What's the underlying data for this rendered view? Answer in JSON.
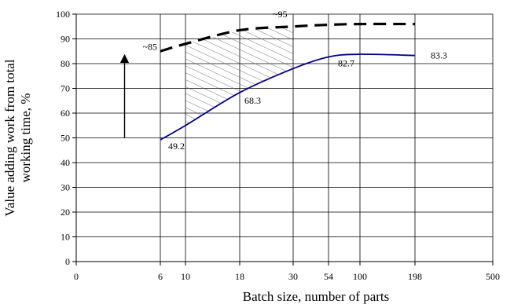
{
  "chart_data": {
    "type": "line",
    "xlabel": "Batch size, number of parts",
    "ylabel_lines": [
      "Value adding work from total",
      "working time, %"
    ],
    "x_scale": "categorical",
    "x_ticks": [
      "0",
      "6",
      "10",
      "18",
      "30",
      "54",
      "100",
      "198",
      "500"
    ],
    "ylim": [
      0,
      100
    ],
    "y_ticks": [
      "0",
      "10",
      "20",
      "30",
      "40",
      "50",
      "60",
      "70",
      "80",
      "90",
      "100"
    ],
    "grid": "vertical lines at x ticks, horizontal lines at y ticks",
    "series": [
      {
        "style": "solid",
        "color": "#00008B",
        "x": [
          "6",
          "10",
          "18",
          "30",
          "54",
          "100",
          "198"
        ],
        "values": [
          49.2,
          55,
          68.3,
          78,
          82.7,
          83.8,
          83.3
        ]
      },
      {
        "style": "dashed",
        "color": "#000000",
        "x": [
          "6",
          "10",
          "18",
          "30",
          "54",
          "100",
          "198"
        ],
        "values": [
          85,
          88,
          93.5,
          95,
          95.7,
          96,
          96
        ]
      }
    ],
    "data_labels": [
      {
        "text": "49.2",
        "series": 0,
        "x": "6"
      },
      {
        "text": "68.3",
        "series": 0,
        "x": "18"
      },
      {
        "text": "82.7",
        "series": 0,
        "x": "54"
      },
      {
        "text": "83.3",
        "series": 0,
        "x": "198"
      },
      {
        "text": "~85",
        "series": 1,
        "x": "6"
      },
      {
        "text": "~95",
        "series": 1,
        "x": "30"
      }
    ],
    "hatched_region": {
      "from_x": "10",
      "to_x": "30",
      "between": "series 0 and series 1"
    },
    "arrow": {
      "x_between": [
        "0",
        "6"
      ],
      "from_y": 50,
      "to_y": 84
    }
  }
}
